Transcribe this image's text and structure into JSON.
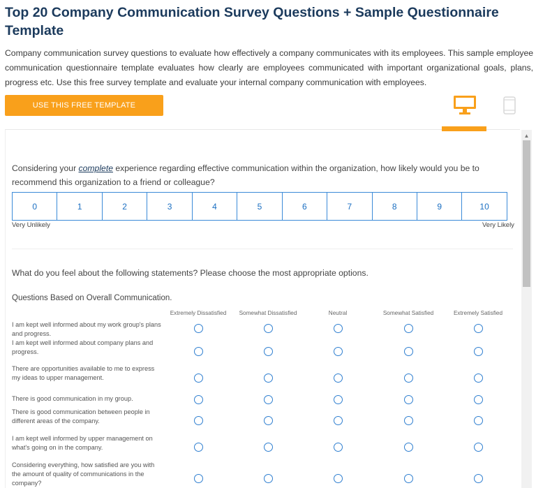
{
  "header": {
    "title": "Top 20 Company Communication Survey Questions + Sample Questionnaire Template",
    "description": "Company communication survey questions to evaluate how effectively a company communicates with its employees. This sample employee communication questionnaire template evaluates how clearly are employees communicated with important organizational goals, plans, progress etc. Use this free survey template and evaluate your internal company communication with employees.",
    "cta_label": "USE THIS FREE TEMPLATE"
  },
  "preview_toggle": {
    "desktop_icon": "desktop-monitor-icon",
    "mobile_icon": "mobile-phone-icon",
    "active": "desktop",
    "accent_color": "#f9a01b"
  },
  "question_1": {
    "text_before": "Considering your ",
    "text_emphasis": "complete",
    "text_after": " experience regarding effective communication within the organization, how likely would you be to recommend this organization to a friend or colleague?",
    "scale": [
      "0",
      "1",
      "2",
      "3",
      "4",
      "5",
      "6",
      "7",
      "8",
      "9",
      "10"
    ],
    "low_label": "Very Unlikely",
    "high_label": "Very Likely"
  },
  "question_2": {
    "text": "What do you feel about the following statements? Please choose the most appropriate options.",
    "section": "Questions Based on Overall Communication.",
    "columns": [
      "Extremely Dissatisfied",
      "Somewhat Dissatisfied",
      "Neutral",
      "Somewhat Satisfied",
      "Extremely Satisfied"
    ],
    "rows": [
      "I am kept well informed about my work group's plans and progress.",
      "I am kept well informed about company plans and progress.",
      "There are opportunities available to me to express my ideas to upper management.",
      "There is good communication in my group.",
      "There is good communication between people in different areas of the company.",
      "I am kept well informed by upper management on what's going on in the company.",
      "Considering everything, how satisfied are you with the amount of quality of communications in the company?"
    ]
  }
}
